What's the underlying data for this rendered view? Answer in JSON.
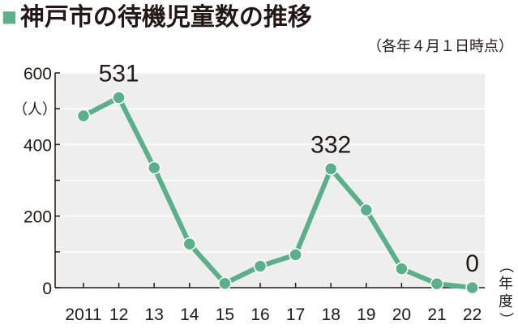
{
  "title": "神戸市の待機児童数の推移",
  "subtitle": "（各年４月１日時点）",
  "colors": {
    "line": "#5ab08a",
    "plot_bg": "#eeeeee",
    "grid": "#ffffff",
    "title_mark": "#5ab08a"
  },
  "chart_data": {
    "type": "line",
    "title": "神戸市の待機児童数の推移",
    "subtitle": "（各年４月１日時点）",
    "ylabel": "（人）",
    "xlabel": "（年度）",
    "categories": [
      "2011",
      "12",
      "13",
      "14",
      "15",
      "16",
      "17",
      "18",
      "19",
      "20",
      "21",
      "22"
    ],
    "series": [
      {
        "values": [
          480,
          531,
          335,
          122,
          12,
          60,
          92,
          332,
          217,
          53,
          11,
          0
        ]
      }
    ],
    "ylim": [
      0,
      600
    ],
    "yticks": [
      0,
      200,
      400,
      600
    ],
    "annotations": [
      {
        "index": 1,
        "text": "531"
      },
      {
        "index": 7,
        "text": "332"
      },
      {
        "index": 11,
        "text": "0"
      }
    ],
    "grid": true
  }
}
